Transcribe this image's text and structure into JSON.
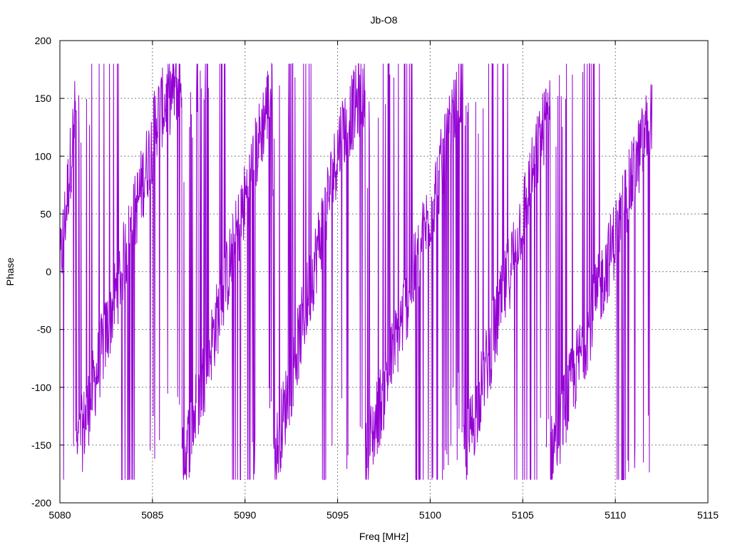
{
  "chart_data": {
    "type": "line",
    "title": "Jb-O8",
    "xlabel": "Freq [MHz]",
    "ylabel": "Phase",
    "xlim": [
      5080,
      5115
    ],
    "ylim": [
      -200,
      200
    ],
    "xticks": [
      5080,
      5085,
      5090,
      5095,
      5100,
      5105,
      5110,
      5115
    ],
    "yticks": [
      -200,
      -150,
      -100,
      -50,
      0,
      50,
      100,
      150,
      200
    ],
    "grid": true,
    "series": [
      {
        "color": "#9400d3",
        "trend_segments": [
          {
            "x_start": 5080.0,
            "x_end": 5080.9,
            "y_start": 0,
            "y_end": 150
          },
          {
            "x_start": 5080.9,
            "x_end": 5085.1,
            "y_start": -160,
            "y_end": 120
          },
          {
            "x_start": 5085.1,
            "x_end": 5086.6,
            "y_start": 130,
            "y_end": 170
          },
          {
            "x_start": 5086.6,
            "x_end": 5091.5,
            "y_start": -170,
            "y_end": 165
          },
          {
            "x_start": 5091.5,
            "x_end": 5095.2,
            "y_start": -170,
            "y_end": 120
          },
          {
            "x_start": 5095.2,
            "x_end": 5096.5,
            "y_start": 120,
            "y_end": 160
          },
          {
            "x_start": 5096.5,
            "x_end": 5101.8,
            "y_start": -165,
            "y_end": 165
          },
          {
            "x_start": 5101.8,
            "x_end": 5106.5,
            "y_start": -165,
            "y_end": 150
          },
          {
            "x_start": 5106.5,
            "x_end": 5112.0,
            "y_start": -160,
            "y_end": 140
          }
        ],
        "x_step": 0.02
      }
    ]
  }
}
